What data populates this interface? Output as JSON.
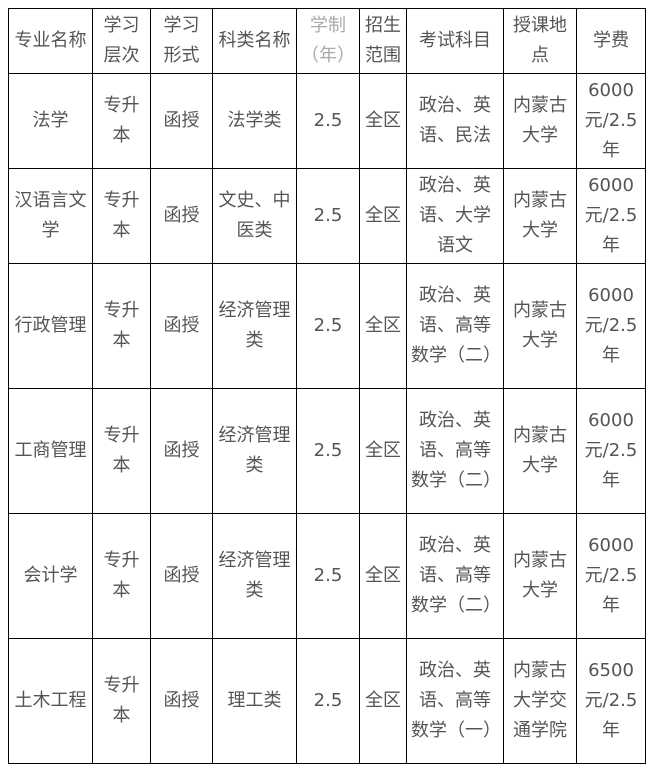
{
  "headers": [
    "专业名称",
    "学习层次",
    "学习形式",
    "科类名称",
    "学制（年）",
    "招生范围",
    "考试科目",
    "授课地点",
    "学费"
  ],
  "colors": {
    "text": "#555555",
    "muted_header": "#aaaaaa",
    "border": "#000000"
  },
  "rows": [
    [
      "法学",
      "专升本",
      "函授",
      "法学类",
      "2.5",
      "全区",
      "政治、英语、民法",
      "内蒙古大学",
      "6000元/2.5年"
    ],
    [
      "汉语言文学",
      "专升本",
      "函授",
      "文史、中医类",
      "2.5",
      "全区",
      "政治、英语、大学语文",
      "内蒙古大学",
      "6000元/2.5年"
    ],
    [
      "行政管理",
      "专升本",
      "函授",
      "经济管理类",
      "2.5",
      "全区",
      "政治、英语、高等数学（二）",
      "内蒙古大学",
      "6000元/2.5年"
    ],
    [
      "工商管理",
      "专升本",
      "函授",
      "经济管理类",
      "2.5",
      "全区",
      "政治、英语、高等数学（二）",
      "内蒙古大学",
      "6000元/2.5年"
    ],
    [
      "会计学",
      "专升本",
      "函授",
      "经济管理类",
      "2.5",
      "全区",
      "政治、英语、高等数学（二）",
      "内蒙古大学",
      "6000元/2.5年"
    ],
    [
      "土木工程",
      "专升本",
      "函授",
      "理工类",
      "2.5",
      "全区",
      "政治、英语、高等数学（一）",
      "内蒙古大学交通学院",
      "6500元/2.5年"
    ]
  ]
}
